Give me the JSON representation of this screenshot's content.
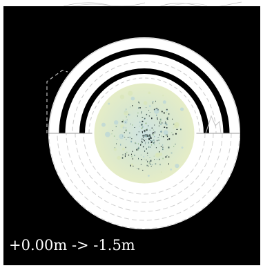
{
  "caption": "+0.00m -> -1.5m",
  "colors": {
    "background": "#000000",
    "ring": "#ffffff",
    "line": "#000000",
    "dashed": "#c8c8c8",
    "caption": "#ffffff"
  },
  "icons": {
    "top_sketch": "hand-drawn-sketch-lines",
    "center_fill": "textured-map-disc"
  }
}
